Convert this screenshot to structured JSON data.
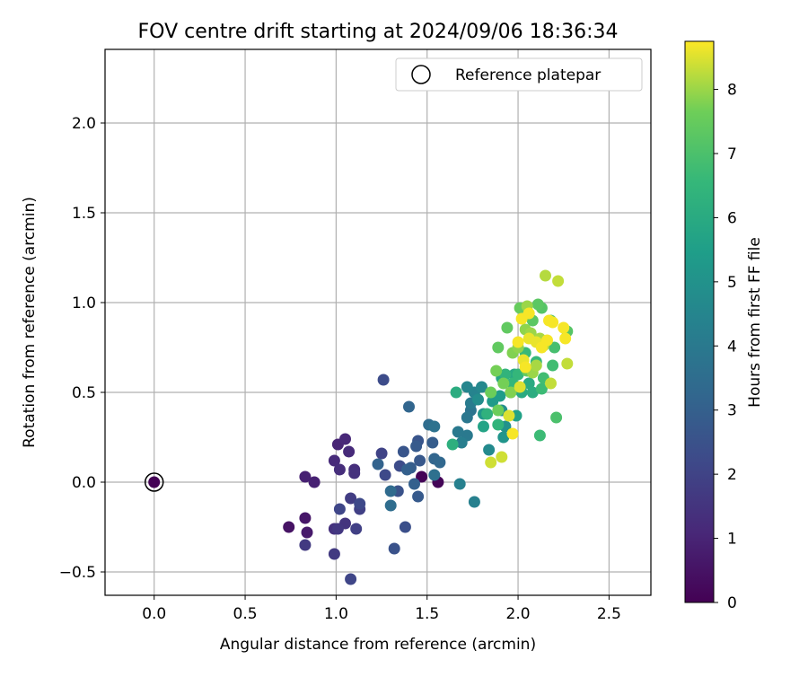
{
  "chart_data": {
    "type": "scatter",
    "title": "FOV centre drift starting at 2024/09/06 18:36:34",
    "xlabel": "Angular distance from reference (arcmin)",
    "ylabel": "Rotation from reference (arcmin)",
    "xlim": [
      -0.27,
      2.73
    ],
    "ylim": [
      -0.63,
      2.41
    ],
    "xticks": [
      "0.0",
      "0.5",
      "1.0",
      "1.5",
      "2.0",
      "2.5"
    ],
    "yticks": [
      "−0.5",
      "0.0",
      "0.5",
      "1.0",
      "1.5",
      "2.0"
    ],
    "xtick_values": [
      0.0,
      0.5,
      1.0,
      1.5,
      2.0,
      2.5
    ],
    "ytick_values": [
      -0.5,
      0.0,
      0.5,
      1.0,
      1.5,
      2.0
    ],
    "grid": true,
    "legend": {
      "placement": "top-right",
      "entries": [
        "Reference platepar"
      ]
    },
    "colorbar": {
      "label": "Hours from first FF file",
      "range": [
        0,
        8.75
      ],
      "ticks": [
        "0",
        "1",
        "2",
        "3",
        "4",
        "5",
        "6",
        "7",
        "8"
      ],
      "tick_values": [
        0,
        1,
        2,
        3,
        4,
        5,
        6,
        7,
        8
      ],
      "colormap": "viridis"
    },
    "reference_point": {
      "x": 0.0,
      "y": 0.0
    },
    "points": [
      [
        0.0,
        0.0,
        0.02
      ],
      [
        1.47,
        0.03,
        0.05
      ],
      [
        1.56,
        0.0,
        0.1
      ],
      [
        0.74,
        -0.25,
        0.5
      ],
      [
        0.83,
        -0.2,
        0.6
      ],
      [
        0.84,
        -0.28,
        0.7
      ],
      [
        0.83,
        0.03,
        0.9
      ],
      [
        0.88,
        0.0,
        0.9
      ],
      [
        1.01,
        0.21,
        1.0
      ],
      [
        1.05,
        0.24,
        1.1
      ],
      [
        0.99,
        0.12,
        1.2
      ],
      [
        1.07,
        0.17,
        1.2
      ],
      [
        1.02,
        0.07,
        1.3
      ],
      [
        1.1,
        0.07,
        1.3
      ],
      [
        1.1,
        0.05,
        1.4
      ],
      [
        0.99,
        -0.26,
        1.4
      ],
      [
        1.05,
        -0.23,
        1.5
      ],
      [
        1.01,
        -0.26,
        1.6
      ],
      [
        0.83,
        -0.35,
        1.7
      ],
      [
        0.99,
        -0.4,
        1.7
      ],
      [
        1.08,
        -0.09,
        1.8
      ],
      [
        1.11,
        -0.26,
        1.9
      ],
      [
        1.13,
        -0.15,
        1.9
      ],
      [
        1.25,
        0.16,
        2.0
      ],
      [
        1.02,
        -0.15,
        2.1
      ],
      [
        1.08,
        -0.54,
        2.1
      ],
      [
        1.13,
        -0.12,
        2.2
      ],
      [
        1.27,
        0.04,
        2.2
      ],
      [
        1.26,
        0.57,
        2.3
      ],
      [
        1.35,
        0.09,
        2.3
      ],
      [
        1.38,
        -0.25,
        2.4
      ],
      [
        1.32,
        -0.37,
        2.5
      ],
      [
        1.34,
        -0.05,
        2.5
      ],
      [
        1.37,
        0.17,
        2.6
      ],
      [
        1.45,
        0.23,
        2.6
      ],
      [
        1.46,
        0.12,
        2.7
      ],
      [
        1.45,
        -0.08,
        2.8
      ],
      [
        1.44,
        0.2,
        2.8
      ],
      [
        1.53,
        0.22,
        2.9
      ],
      [
        1.41,
        0.08,
        2.9
      ],
      [
        1.39,
        0.07,
        3.0
      ],
      [
        1.43,
        -0.01,
        3.0
      ],
      [
        1.23,
        0.1,
        3.1
      ],
      [
        1.4,
        0.42,
        3.2
      ],
      [
        1.54,
        0.13,
        3.2
      ],
      [
        1.57,
        0.11,
        3.3
      ],
      [
        1.3,
        -0.05,
        3.4
      ],
      [
        1.3,
        -0.13,
        3.5
      ],
      [
        1.51,
        0.32,
        3.5
      ],
      [
        1.54,
        0.04,
        3.6
      ],
      [
        1.54,
        0.31,
        3.7
      ],
      [
        1.74,
        0.4,
        3.8
      ],
      [
        1.72,
        0.36,
        3.9
      ],
      [
        1.72,
        0.26,
        4.0
      ],
      [
        1.67,
        0.28,
        4.0
      ],
      [
        1.74,
        0.44,
        4.1
      ],
      [
        1.69,
        0.22,
        4.2
      ],
      [
        1.76,
        -0.11,
        4.3
      ],
      [
        1.68,
        -0.01,
        4.3
      ],
      [
        1.76,
        0.5,
        4.4
      ],
      [
        1.72,
        0.53,
        4.5
      ],
      [
        1.8,
        0.53,
        4.6
      ],
      [
        1.84,
        0.18,
        4.7
      ],
      [
        1.78,
        0.46,
        4.8
      ],
      [
        1.91,
        0.4,
        4.9
      ],
      [
        1.93,
        0.31,
        5.0
      ],
      [
        1.92,
        0.25,
        5.1
      ],
      [
        1.81,
        0.38,
        5.2
      ],
      [
        1.86,
        0.45,
        5.3
      ],
      [
        1.9,
        0.48,
        5.4
      ],
      [
        1.96,
        0.5,
        5.5
      ],
      [
        1.99,
        0.37,
        5.6
      ],
      [
        1.81,
        0.31,
        5.7
      ],
      [
        1.91,
        0.58,
        5.8
      ],
      [
        1.98,
        0.6,
        5.9
      ],
      [
        2.02,
        0.5,
        6.0
      ],
      [
        2.06,
        0.55,
        6.0
      ],
      [
        2.08,
        0.5,
        6.1
      ],
      [
        1.66,
        0.5,
        6.1
      ],
      [
        1.64,
        0.21,
        6.2
      ],
      [
        1.83,
        0.38,
        6.3
      ],
      [
        1.89,
        0.32,
        6.4
      ],
      [
        1.93,
        0.6,
        6.4
      ],
      [
        1.97,
        0.55,
        6.5
      ],
      [
        2.0,
        0.6,
        6.5
      ],
      [
        2.04,
        0.72,
        6.6
      ],
      [
        2.1,
        0.67,
        6.6
      ],
      [
        2.12,
        0.26,
        6.7
      ],
      [
        2.13,
        0.52,
        6.7
      ],
      [
        2.14,
        0.58,
        6.8
      ],
      [
        2.19,
        0.65,
        6.8
      ],
      [
        2.2,
        0.75,
        6.9
      ],
      [
        2.21,
        0.36,
        7.0
      ],
      [
        2.18,
        0.9,
        7.1
      ],
      [
        2.27,
        0.84,
        7.2
      ],
      [
        2.13,
        0.97,
        7.2
      ],
      [
        2.11,
        0.99,
        7.3
      ],
      [
        2.08,
        0.9,
        7.3
      ],
      [
        1.89,
        0.75,
        7.4
      ],
      [
        1.94,
        0.86,
        7.4
      ],
      [
        2.05,
        0.62,
        7.5
      ],
      [
        2.01,
        0.97,
        7.5
      ],
      [
        1.89,
        0.4,
        7.6
      ],
      [
        1.85,
        0.5,
        7.6
      ],
      [
        1.88,
        0.62,
        7.7
      ],
      [
        1.92,
        0.55,
        7.7
      ],
      [
        1.96,
        0.5,
        7.8
      ],
      [
        1.97,
        0.72,
        7.8
      ],
      [
        2.0,
        0.75,
        7.9
      ],
      [
        2.04,
        0.85,
        7.9
      ],
      [
        2.05,
        0.98,
        8.0
      ],
      [
        2.07,
        0.83,
        8.0
      ],
      [
        2.08,
        0.61,
        8.0
      ],
      [
        2.1,
        0.65,
        8.1
      ],
      [
        2.12,
        0.8,
        8.1
      ],
      [
        2.14,
        0.76,
        8.2
      ],
      [
        2.15,
        1.15,
        8.2
      ],
      [
        2.18,
        0.55,
        8.3
      ],
      [
        2.22,
        1.12,
        8.3
      ],
      [
        2.27,
        0.66,
        8.3
      ],
      [
        1.85,
        0.11,
        8.4
      ],
      [
        1.91,
        0.14,
        8.4
      ],
      [
        1.95,
        0.37,
        8.5
      ],
      [
        2.01,
        0.53,
        8.5
      ],
      [
        2.03,
        0.68,
        8.6
      ],
      [
        2.06,
        0.8,
        8.6
      ],
      [
        2.1,
        0.78,
        8.6
      ],
      [
        2.13,
        0.75,
        8.7
      ],
      [
        2.17,
        0.9,
        8.7
      ],
      [
        2.25,
        0.86,
        8.7
      ],
      [
        2.26,
        0.8,
        8.7
      ],
      [
        1.97,
        0.27,
        8.7
      ],
      [
        2.02,
        0.91,
        8.7
      ],
      [
        2.06,
        0.94,
        8.7
      ],
      [
        2.16,
        0.79,
        8.7
      ],
      [
        2.19,
        0.89,
        8.7
      ],
      [
        2.0,
        0.78,
        8.7
      ],
      [
        2.04,
        0.64,
        8.7
      ]
    ]
  }
}
